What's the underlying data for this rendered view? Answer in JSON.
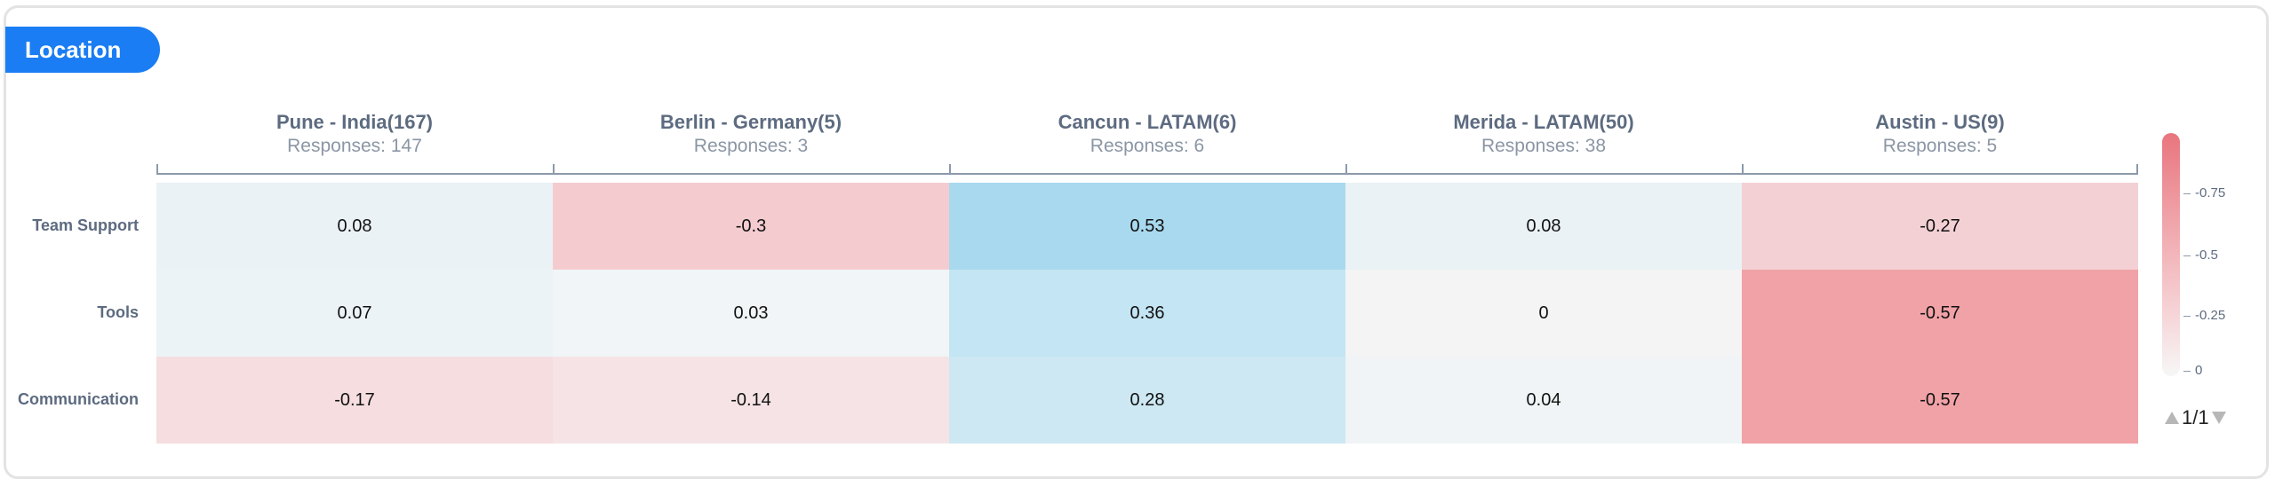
{
  "section_tag": "Location",
  "chart_data": {
    "type": "heatmap",
    "columns": [
      {
        "title": "Pune - India(167)",
        "responses": "Responses: 147"
      },
      {
        "title": "Berlin - Germany(5)",
        "responses": "Responses: 3"
      },
      {
        "title": "Cancun - LATAM(6)",
        "responses": "Responses: 6"
      },
      {
        "title": "Merida - LATAM(50)",
        "responses": "Responses: 38"
      },
      {
        "title": "Austin - US(9)",
        "responses": "Responses: 5"
      }
    ],
    "rows": [
      "Team Support",
      "Tools",
      "Communication"
    ],
    "values": [
      [
        "0.08",
        "-0.3",
        "0.53",
        "0.08",
        "-0.27"
      ],
      [
        "0.07",
        "0.03",
        "0.36",
        "0",
        "-0.57"
      ],
      [
        "-0.17",
        "-0.14",
        "0.28",
        "0.04",
        "-0.57"
      ]
    ],
    "colors": [
      [
        "#eaf2f5",
        "#f4ccd0",
        "#a8d9ef",
        "#eaf2f5",
        "#f3d0d4"
      ],
      [
        "#ebf3f6",
        "#f1f5f7",
        "#c4e5f3",
        "#f4f4f4",
        "#f0a2a7"
      ],
      [
        "#f5dde0",
        "#f5e3e5",
        "#cde8f3",
        "#f0f4f6",
        "#f0a2a7"
      ]
    ],
    "legend": {
      "labels": [
        "-0.75",
        "-0.5",
        "-0.25",
        "0"
      ],
      "colors": [
        "#e9757e",
        "#f7f7f7"
      ]
    }
  },
  "pager": {
    "text": "1/1"
  }
}
